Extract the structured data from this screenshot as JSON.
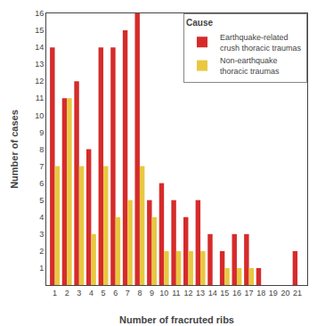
{
  "chart_data": {
    "type": "bar",
    "legend_title": "Cause",
    "xlabel": "Number of fracruted ribs",
    "ylabel": "Number of cases",
    "x": [
      1,
      2,
      3,
      4,
      5,
      6,
      7,
      8,
      9,
      10,
      11,
      12,
      13,
      14,
      15,
      16,
      17,
      18,
      19,
      20,
      21
    ],
    "series": [
      {
        "name": "Earthquake-related\ncrush thoracic traumas",
        "color": "#d62b2b",
        "values": [
          14,
          11,
          12,
          8,
          14,
          14,
          15,
          16,
          5,
          6,
          5,
          4,
          5,
          3,
          2,
          3,
          3,
          1,
          0,
          0,
          2
        ]
      },
      {
        "name": "Non-earthquake\nthoracic traumas",
        "color": "#e8c840",
        "values": [
          7,
          11,
          7,
          3,
          7,
          4,
          5,
          7,
          4,
          2,
          2,
          2,
          2,
          0,
          1,
          1,
          1,
          0,
          0,
          0,
          0
        ]
      }
    ],
    "xlim": [
      0.3,
      21.8
    ],
    "xticks": [
      1,
      2,
      3,
      4,
      5,
      6,
      7,
      8,
      9,
      10,
      11,
      12,
      13,
      14,
      15,
      16,
      17,
      18,
      19,
      20,
      21
    ],
    "ylim": [
      0,
      16
    ],
    "yticks": [
      1,
      2,
      3,
      4,
      5,
      6,
      7,
      8,
      9,
      10,
      11,
      12,
      13,
      14,
      15,
      16
    ],
    "legend": "upper right",
    "grid": false
  }
}
